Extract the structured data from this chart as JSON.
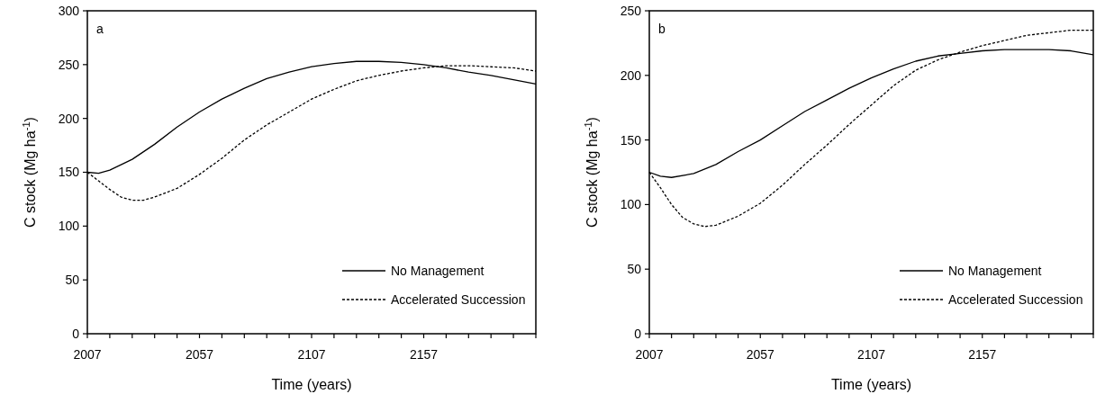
{
  "chart_data": [
    {
      "type": "line",
      "ylabel": "C stock (Mg ha$^{-1}$)",
      "xlabel": "Time (years)",
      "annotations": [
        "a"
      ],
      "legend": "bottom right",
      "marker": "none",
      "xlim": [
        2007,
        2207
      ],
      "ylim": [
        0,
        300
      ],
      "yticks": [
        0,
        50,
        100,
        150,
        200,
        250,
        300
      ],
      "xticks": [
        2007,
        {
          "value": 2017,
          "label": null
        },
        {
          "value": 2027,
          "label": null
        },
        {
          "value": 2037,
          "label": null
        },
        {
          "value": 2047,
          "label": null
        },
        2057,
        {
          "value": 2067,
          "label": null
        },
        {
          "value": 2077,
          "label": null
        },
        {
          "value": 2087,
          "label": null
        },
        {
          "value": 2097,
          "label": null
        },
        2107,
        {
          "value": 2117,
          "label": null
        },
        {
          "value": 2127,
          "label": null
        },
        {
          "value": 2137,
          "label": null
        },
        {
          "value": 2147,
          "label": null
        },
        2157,
        {
          "value": 2167,
          "label": null
        },
        {
          "value": 2177,
          "label": null
        },
        {
          "value": 2187,
          "label": null
        },
        {
          "value": 2197,
          "label": null
        },
        {
          "value": 2207,
          "label": null
        }
      ],
      "series": [
        {
          "name": "No Management",
          "color": "#000000",
          "line_style": "solid",
          "x": [
            2007,
            2012,
            2017,
            2027,
            2037,
            2047,
            2057,
            2067,
            2077,
            2087,
            2097,
            2107,
            2117,
            2127,
            2137,
            2147,
            2157,
            2167,
            2177,
            2187,
            2197,
            2207
          ],
          "values": [
            150,
            149,
            152,
            162,
            176,
            192,
            206,
            218,
            228,
            237,
            243,
            248,
            251,
            253,
            253,
            252,
            250,
            247,
            243,
            240,
            236,
            232
          ]
        },
        {
          "name": "Accelerated Succession",
          "color": "#000000",
          "line_style": "dashed",
          "x": [
            2007,
            2012,
            2017,
            2022,
            2027,
            2032,
            2037,
            2047,
            2057,
            2067,
            2077,
            2087,
            2097,
            2107,
            2117,
            2127,
            2137,
            2147,
            2157,
            2167,
            2177,
            2187,
            2197,
            2207
          ],
          "values": [
            150,
            142,
            134,
            127,
            124,
            124,
            127,
            135,
            148,
            163,
            180,
            194,
            206,
            218,
            227,
            235,
            240,
            244,
            247,
            249,
            249,
            248,
            247,
            244
          ]
        }
      ]
    },
    {
      "type": "line",
      "ylabel": "C stock (Mg ha$^{-1}$)",
      "xlabel": "Time (years)",
      "annotations": [
        "b"
      ],
      "legend": "bottom right",
      "marker": "none",
      "xlim": [
        2007,
        2207
      ],
      "ylim": [
        0,
        250
      ],
      "yticks": [
        0,
        50,
        100,
        150,
        200,
        250
      ],
      "xticks": [
        2007,
        {
          "value": 2017,
          "label": null
        },
        {
          "value": 2027,
          "label": null
        },
        {
          "value": 2037,
          "label": null
        },
        {
          "value": 2047,
          "label": null
        },
        2057,
        {
          "value": 2067,
          "label": null
        },
        {
          "value": 2077,
          "label": null
        },
        {
          "value": 2087,
          "label": null
        },
        {
          "value": 2097,
          "label": null
        },
        2107,
        {
          "value": 2117,
          "label": null
        },
        {
          "value": 2127,
          "label": null
        },
        {
          "value": 2137,
          "label": null
        },
        {
          "value": 2147,
          "label": null
        },
        2157,
        {
          "value": 2167,
          "label": null
        },
        {
          "value": 2177,
          "label": null
        },
        {
          "value": 2187,
          "label": null
        },
        {
          "value": 2197,
          "label": null
        },
        {
          "value": 2207,
          "label": null
        }
      ],
      "series": [
        {
          "name": "No Management",
          "color": "#000000",
          "line_style": "solid",
          "x": [
            2007,
            2012,
            2017,
            2027,
            2037,
            2047,
            2057,
            2067,
            2077,
            2087,
            2097,
            2107,
            2117,
            2127,
            2137,
            2147,
            2157,
            2167,
            2177,
            2187,
            2197,
            2207
          ],
          "values": [
            125,
            122,
            121,
            124,
            131,
            141,
            150,
            161,
            172,
            181,
            190,
            198,
            205,
            211,
            215,
            217,
            219,
            220,
            220,
            220,
            219,
            216
          ]
        },
        {
          "name": "Accelerated Succession",
          "color": "#000000",
          "line_style": "dashed",
          "x": [
            2007,
            2012,
            2017,
            2022,
            2027,
            2032,
            2037,
            2047,
            2057,
            2067,
            2077,
            2087,
            2097,
            2107,
            2117,
            2127,
            2137,
            2147,
            2157,
            2167,
            2177,
            2187,
            2197,
            2207
          ],
          "values": [
            125,
            113,
            100,
            90,
            85,
            83,
            84,
            91,
            101,
            115,
            131,
            146,
            162,
            177,
            192,
            204,
            212,
            218,
            223,
            227,
            231,
            233,
            235,
            235
          ]
        }
      ]
    }
  ]
}
